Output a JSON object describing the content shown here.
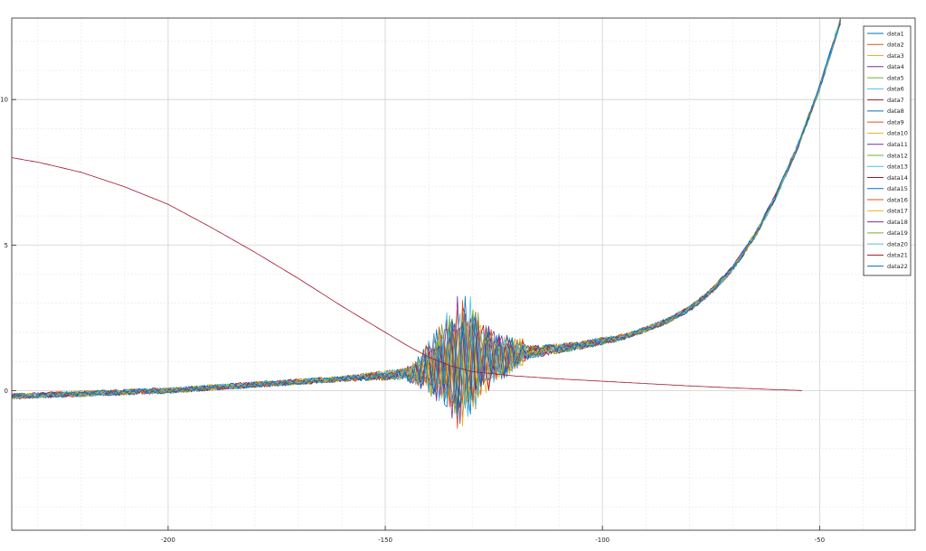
{
  "chart_data": {
    "type": "line",
    "title": "",
    "xlabel": "",
    "ylabel": "",
    "xlim": [
      -236,
      -28
    ],
    "ylim": [
      -4.8,
      12.8
    ],
    "xticks": [
      -200,
      -150,
      -100,
      -50
    ],
    "yticks": [
      0,
      5,
      10
    ],
    "xtick_labels": [
      "-200",
      "-150",
      "-100",
      "-50"
    ],
    "ytick_labels": [
      "0",
      "5",
      "10"
    ],
    "grid": true,
    "legend_position": "top-right",
    "noise_shape": {
      "x": [
        -236,
        -200,
        -160,
        -144,
        -140,
        -136,
        -133,
        -130,
        -128,
        -125,
        -120,
        -115,
        -110,
        -105,
        -100,
        -95,
        -90,
        -85,
        -80,
        -75,
        -70,
        -65,
        -60,
        -55,
        -50,
        -45
      ],
      "y": [
        -0.2,
        0.0,
        0.4,
        0.6,
        0.8,
        0.9,
        1.0,
        1.1,
        1.1,
        1.15,
        1.25,
        1.35,
        1.45,
        1.55,
        1.7,
        1.85,
        2.1,
        2.4,
        2.8,
        3.4,
        4.2,
        5.3,
        6.7,
        8.4,
        10.4,
        12.8
      ],
      "spread": [
        0.15,
        0.15,
        0.15,
        0.3,
        0.8,
        1.5,
        2.0,
        1.8,
        1.2,
        0.8,
        0.5,
        0.3,
        0.25,
        0.2,
        0.2,
        0.15,
        0.15,
        0.15,
        0.15,
        0.15,
        0.15,
        0.15,
        0.15,
        0.15,
        0.15,
        0.15
      ]
    },
    "series": [
      {
        "name": "data1",
        "color": "#0072BD"
      },
      {
        "name": "data2",
        "color": "#D95319"
      },
      {
        "name": "data3",
        "color": "#EDB120"
      },
      {
        "name": "data4",
        "color": "#7E2F8E"
      },
      {
        "name": "data5",
        "color": "#77AC30"
      },
      {
        "name": "data6",
        "color": "#4DBEEE"
      },
      {
        "name": "data7",
        "color": "#A2142F"
      },
      {
        "name": "data8",
        "color": "#0072BD"
      },
      {
        "name": "data9",
        "color": "#D95319"
      },
      {
        "name": "data10",
        "color": "#EDB120"
      },
      {
        "name": "data11",
        "color": "#7E2F8E"
      },
      {
        "name": "data12",
        "color": "#77AC30"
      },
      {
        "name": "data13",
        "color": "#4DBEEE"
      },
      {
        "name": "data14",
        "color": "#A2142F"
      },
      {
        "name": "data15",
        "color": "#0072BD"
      },
      {
        "name": "data16",
        "color": "#D95319"
      },
      {
        "name": "data17",
        "color": "#EDB120"
      },
      {
        "name": "data18",
        "color": "#7E2F8E"
      },
      {
        "name": "data19",
        "color": "#77AC30"
      },
      {
        "name": "data20",
        "color": "#4DBEEE"
      },
      {
        "name": "data21",
        "color": "#A2142F",
        "smooth": true,
        "x": [
          -236,
          -230,
          -220,
          -210,
          -200,
          -190,
          -180,
          -170,
          -160,
          -150,
          -145,
          -140,
          -135,
          -130,
          -120,
          -110,
          -100,
          -90,
          -80,
          -70,
          -60,
          -54
        ],
        "y": [
          8.0,
          7.85,
          7.5,
          7.0,
          6.4,
          5.6,
          4.75,
          3.85,
          2.9,
          2.0,
          1.55,
          1.15,
          0.85,
          0.65,
          0.5,
          0.4,
          0.32,
          0.24,
          0.16,
          0.09,
          0.03,
          0.0
        ]
      },
      {
        "name": "data22",
        "color": "#0072BD"
      }
    ]
  }
}
